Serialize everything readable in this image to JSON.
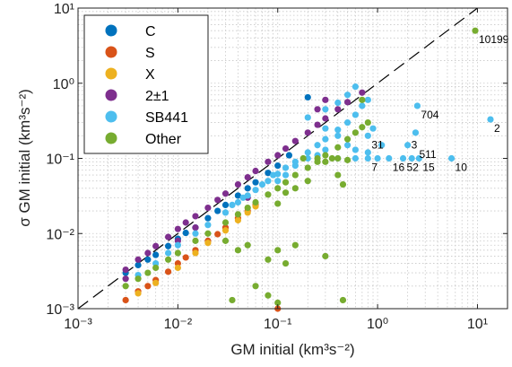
{
  "chart_data": {
    "type": "scatter",
    "xlabel": "GM initial (km³s⁻²)",
    "ylabel": "σ GM initial (km³s⁻²)",
    "xscale": "log",
    "yscale": "log",
    "xlim": [
      0.001,
      20
    ],
    "ylim": [
      0.001,
      10
    ],
    "grid": true,
    "legend_placement": "top-left",
    "x_ticks": [
      "10⁻³",
      "10⁻²",
      "10⁻¹",
      "10⁰",
      "10¹"
    ],
    "y_ticks": [
      "10⁻³",
      "10⁻²",
      "10⁻¹",
      "10⁰",
      "10¹"
    ],
    "reference_line": "y = x",
    "series": [
      {
        "name": "C",
        "color": "#0072BD",
        "points": [
          [
            0.003,
            0.003
          ],
          [
            0.004,
            0.0038
          ],
          [
            0.005,
            0.0045
          ],
          [
            0.006,
            0.0052
          ],
          [
            0.008,
            0.0068
          ],
          [
            0.01,
            0.0085
          ],
          [
            0.012,
            0.0102
          ],
          [
            0.015,
            0.012
          ],
          [
            0.02,
            0.016
          ],
          [
            0.025,
            0.02
          ],
          [
            0.03,
            0.024
          ],
          [
            0.04,
            0.032
          ],
          [
            0.05,
            0.04
          ],
          [
            0.06,
            0.048
          ],
          [
            0.08,
            0.064
          ],
          [
            0.1,
            0.08
          ],
          [
            0.13,
            0.11
          ],
          [
            0.2,
            0.65
          ]
        ]
      },
      {
        "name": "S",
        "color": "#D95319",
        "points": [
          [
            0.003,
            0.0013
          ],
          [
            0.004,
            0.0017
          ],
          [
            0.005,
            0.002
          ],
          [
            0.006,
            0.0024
          ],
          [
            0.008,
            0.0031
          ],
          [
            0.01,
            0.004
          ],
          [
            0.012,
            0.0048
          ],
          [
            0.015,
            0.006
          ],
          [
            0.02,
            0.008
          ],
          [
            0.025,
            0.0098
          ],
          [
            0.03,
            0.012
          ],
          [
            0.04,
            0.016
          ],
          [
            0.05,
            0.02
          ],
          [
            0.06,
            0.024
          ],
          [
            0.1,
            0.001
          ]
        ]
      },
      {
        "name": "X",
        "color": "#EDB120",
        "points": [
          [
            0.004,
            0.0016
          ],
          [
            0.006,
            0.0022
          ],
          [
            0.01,
            0.0035
          ],
          [
            0.015,
            0.0055
          ],
          [
            0.02,
            0.0075
          ],
          [
            0.03,
            0.011
          ],
          [
            0.04,
            0.015
          ],
          [
            0.05,
            0.019
          ],
          [
            0.06,
            0.023
          ]
        ]
      },
      {
        "name": "2±1",
        "color": "#7E2F8E",
        "points": [
          [
            0.003,
            0.0025
          ],
          [
            0.003,
            0.0033
          ],
          [
            0.004,
            0.0045
          ],
          [
            0.005,
            0.0055
          ],
          [
            0.006,
            0.0068
          ],
          [
            0.008,
            0.009
          ],
          [
            0.01,
            0.0115
          ],
          [
            0.012,
            0.014
          ],
          [
            0.015,
            0.017
          ],
          [
            0.02,
            0.022
          ],
          [
            0.025,
            0.028
          ],
          [
            0.03,
            0.034
          ],
          [
            0.04,
            0.045
          ],
          [
            0.05,
            0.056
          ],
          [
            0.06,
            0.068
          ],
          [
            0.08,
            0.09
          ],
          [
            0.1,
            0.11
          ],
          [
            0.12,
            0.135
          ],
          [
            0.15,
            0.17
          ],
          [
            0.2,
            0.22
          ],
          [
            0.25,
            0.28
          ],
          [
            0.3,
            0.34
          ],
          [
            0.4,
            0.45
          ],
          [
            0.5,
            0.56
          ],
          [
            0.7,
            0.75
          ],
          [
            0.25,
            0.45
          ],
          [
            0.3,
            0.6
          ],
          [
            0.05,
            0.03
          ],
          [
            0.015,
            0.012
          ],
          [
            0.01,
            0.008
          ]
        ]
      },
      {
        "name": "SB441",
        "color": "#4DBEEE",
        "points": [
          [
            0.004,
            0.0028
          ],
          [
            0.006,
            0.004
          ],
          [
            0.008,
            0.0055
          ],
          [
            0.01,
            0.007
          ],
          [
            0.015,
            0.01
          ],
          [
            0.02,
            0.013
          ],
          [
            0.03,
            0.019
          ],
          [
            0.04,
            0.026
          ],
          [
            0.05,
            0.032
          ],
          [
            0.06,
            0.038
          ],
          [
            0.08,
            0.05
          ],
          [
            0.1,
            0.062
          ],
          [
            0.12,
            0.075
          ],
          [
            0.15,
            0.09
          ],
          [
            0.2,
            0.12
          ],
          [
            0.25,
            0.15
          ],
          [
            0.3,
            0.18
          ],
          [
            0.4,
            0.24
          ],
          [
            0.5,
            0.3
          ],
          [
            0.6,
            0.38
          ],
          [
            0.7,
            0.5
          ],
          [
            0.8,
            0.6
          ],
          [
            0.2,
            0.35
          ],
          [
            0.3,
            0.45
          ],
          [
            0.4,
            0.55
          ],
          [
            0.5,
            0.7
          ],
          [
            0.6,
            0.9
          ],
          [
            0.3,
            0.25
          ],
          [
            0.4,
            0.2
          ],
          [
            0.5,
            0.15
          ],
          [
            0.6,
            0.13
          ],
          [
            0.8,
            0.12
          ],
          [
            0.3,
            0.13
          ],
          [
            0.25,
            0.11
          ],
          [
            0.2,
            0.1
          ],
          [
            0.15,
            0.08
          ],
          [
            0.4,
            0.1
          ],
          [
            0.6,
            0.1
          ],
          [
            0.8,
            0.1
          ],
          [
            1.0,
            0.1
          ],
          [
            1.3,
            0.1
          ],
          [
            1.8,
            0.1
          ],
          [
            2.2,
            0.1
          ],
          [
            2.6,
            0.1
          ],
          [
            5.5,
            0.1
          ],
          [
            0.8,
            0.2
          ],
          [
            0.9,
            0.25
          ],
          [
            1.1,
            0.15
          ],
          [
            2.0,
            0.15
          ],
          [
            2.4,
            0.22
          ],
          [
            2.5,
            0.5
          ],
          [
            13.5,
            0.33
          ],
          [
            0.09,
            0.06
          ],
          [
            0.07,
            0.045
          ],
          [
            0.045,
            0.03
          ],
          [
            0.035,
            0.024
          ],
          [
            0.1,
            0.05
          ],
          [
            0.12,
            0.06
          ]
        ]
      },
      {
        "name": "Other",
        "color": "#77AC30",
        "points": [
          [
            0.003,
            0.002
          ],
          [
            0.004,
            0.0025
          ],
          [
            0.005,
            0.003
          ],
          [
            0.006,
            0.0035
          ],
          [
            0.008,
            0.0045
          ],
          [
            0.01,
            0.0055
          ],
          [
            0.015,
            0.008
          ],
          [
            0.02,
            0.01
          ],
          [
            0.03,
            0.014
          ],
          [
            0.04,
            0.018
          ],
          [
            0.05,
            0.022
          ],
          [
            0.06,
            0.026
          ],
          [
            0.08,
            0.033
          ],
          [
            0.1,
            0.04
          ],
          [
            0.12,
            0.048
          ],
          [
            0.15,
            0.06
          ],
          [
            0.2,
            0.075
          ],
          [
            0.25,
            0.09
          ],
          [
            0.3,
            0.11
          ],
          [
            0.4,
            0.14
          ],
          [
            0.5,
            0.18
          ],
          [
            0.6,
            0.22
          ],
          [
            0.7,
            0.26
          ],
          [
            0.8,
            0.3
          ],
          [
            0.12,
            0.035
          ],
          [
            0.15,
            0.04
          ],
          [
            0.1,
            0.025
          ],
          [
            0.2,
            0.05
          ],
          [
            0.18,
            0.1
          ],
          [
            0.25,
            0.1
          ],
          [
            0.3,
            0.09
          ],
          [
            0.35,
            0.1
          ],
          [
            0.4,
            0.1
          ],
          [
            0.5,
            0.095
          ],
          [
            0.15,
            0.007
          ],
          [
            0.12,
            0.004
          ],
          [
            0.1,
            0.006
          ],
          [
            0.08,
            0.0045
          ],
          [
            0.03,
            0.008
          ],
          [
            0.04,
            0.006
          ],
          [
            0.06,
            0.002
          ],
          [
            0.1,
            0.0012
          ],
          [
            0.08,
            0.0015
          ],
          [
            0.035,
            0.0013
          ],
          [
            0.45,
            0.0013
          ],
          [
            0.3,
            0.005
          ],
          [
            0.4,
            0.06
          ],
          [
            0.45,
            0.045
          ],
          [
            0.05,
            0.007
          ],
          [
            0.7,
            0.6
          ],
          [
            9.5,
            5.0
          ]
        ]
      }
    ],
    "annotations": [
      {
        "text": "10199",
        "x": 9.5,
        "y": 5.0
      },
      {
        "text": "704",
        "x": 2.5,
        "y": 0.5
      },
      {
        "text": "2",
        "x": 13.5,
        "y": 0.33
      },
      {
        "text": "31",
        "x": 0.8,
        "y": 0.2
      },
      {
        "text": "3",
        "x": 2.0,
        "y": 0.2
      },
      {
        "text": "511",
        "x": 2.4,
        "y": 0.15
      },
      {
        "text": "16",
        "x": 1.3,
        "y": 0.1
      },
      {
        "text": "15",
        "x": 2.6,
        "y": 0.1
      },
      {
        "text": "7",
        "x": 0.8,
        "y": 0.1
      },
      {
        "text": "52",
        "x": 1.8,
        "y": 0.1
      },
      {
        "text": "10",
        "x": 5.5,
        "y": 0.1
      }
    ]
  }
}
